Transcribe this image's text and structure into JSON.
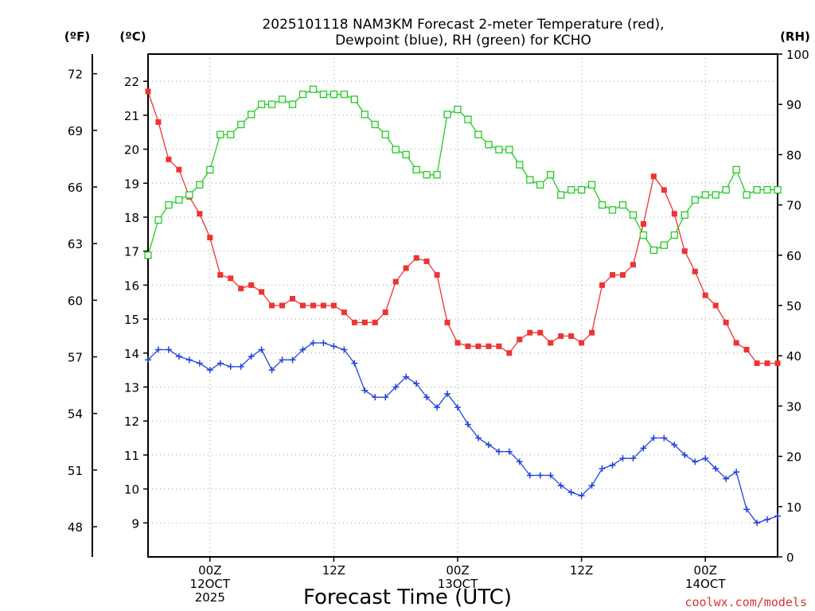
{
  "title_line1": "2025101118 NAM3KM Forecast 2-meter Temperature (red),",
  "title_line2": "Dewpoint (blue), RH (green) for KCHO",
  "unit_f": "(ºF)",
  "unit_c": "(ºC)",
  "unit_rh": "(RH)",
  "xlabel": "Forecast Time (UTC)",
  "credit": "coolwx.com/models",
  "colors": {
    "temperature": "#ee3333",
    "dewpoint": "#2244dd",
    "rh": "#22cc22",
    "credit": "#dd3333"
  },
  "chart_data": {
    "type": "line",
    "title": "2025101118 NAM3KM Forecast 2-meter Temperature (red), Dewpoint (blue), RH (green) for KCHO",
    "xlabel": "Forecast Time (UTC)",
    "x_unit": "forecast hour from 2025-10-11 18Z",
    "x": [
      0,
      1,
      2,
      3,
      4,
      5,
      6,
      7,
      8,
      9,
      10,
      11,
      12,
      13,
      14,
      15,
      16,
      17,
      18,
      19,
      20,
      21,
      22,
      23,
      24,
      25,
      26,
      27,
      28,
      29,
      30,
      31,
      32,
      33,
      34,
      35,
      36,
      37,
      38,
      39,
      40,
      41,
      42,
      43,
      44,
      45,
      46,
      47,
      48,
      49,
      50,
      51,
      52,
      53,
      54,
      55,
      56,
      57,
      58,
      59,
      60,
      61
    ],
    "xlim": [
      0,
      61
    ],
    "x_ticks": [
      {
        "hour": 6,
        "labels": [
          "00Z",
          "12OCT",
          "2025"
        ]
      },
      {
        "hour": 18,
        "labels": [
          "12Z"
        ]
      },
      {
        "hour": 30,
        "labels": [
          "00Z",
          "13OCT"
        ]
      },
      {
        "hour": 42,
        "labels": [
          "12Z"
        ]
      },
      {
        "hour": 54,
        "labels": [
          "00Z",
          "14OCT"
        ]
      }
    ],
    "y_left_c": {
      "label": "(ºC)",
      "lim": [
        8.0,
        22.8
      ],
      "ticks": [
        9,
        10,
        11,
        12,
        13,
        14,
        15,
        16,
        17,
        18,
        19,
        20,
        21,
        22
      ]
    },
    "y_left_f": {
      "label": "(ºF)",
      "ticks": [
        48,
        51,
        54,
        57,
        60,
        63,
        66,
        69,
        72
      ]
    },
    "y_right_rh": {
      "label": "(RH)",
      "lim": [
        0,
        100
      ],
      "ticks": [
        0,
        10,
        20,
        30,
        40,
        50,
        60,
        70,
        80,
        90,
        100
      ]
    },
    "grid": true,
    "series": [
      {
        "name": "Temperature",
        "unit": "C",
        "marker": "filled-square",
        "values": [
          21.7,
          20.8,
          19.7,
          19.4,
          18.6,
          18.1,
          17.4,
          16.3,
          16.2,
          15.9,
          16.0,
          15.8,
          15.4,
          15.4,
          15.6,
          15.4,
          15.4,
          15.4,
          15.4,
          15.2,
          14.9,
          14.9,
          14.9,
          15.2,
          16.1,
          16.5,
          16.8,
          16.7,
          16.3,
          14.9,
          14.3,
          14.2,
          14.2,
          14.2,
          14.2,
          14.0,
          14.4,
          14.6,
          14.6,
          14.3,
          14.5,
          14.5,
          14.3,
          14.6,
          16.0,
          16.3,
          16.3,
          16.6,
          17.8,
          19.2,
          18.8,
          18.1,
          17.0,
          16.4,
          15.7,
          15.4,
          14.9,
          14.3,
          14.1,
          13.7,
          13.7,
          13.7
        ]
      },
      {
        "name": "Dewpoint",
        "unit": "C",
        "marker": "plus",
        "values": [
          13.8,
          14.1,
          14.1,
          13.9,
          13.8,
          13.7,
          13.5,
          13.7,
          13.6,
          13.6,
          13.9,
          14.1,
          13.5,
          13.8,
          13.8,
          14.1,
          14.3,
          14.3,
          14.2,
          14.1,
          13.7,
          12.9,
          12.7,
          12.7,
          13.0,
          13.3,
          13.1,
          12.7,
          12.4,
          12.8,
          12.4,
          11.9,
          11.5,
          11.3,
          11.1,
          11.1,
          10.8,
          10.4,
          10.4,
          10.4,
          10.1,
          9.9,
          9.8,
          10.1,
          10.6,
          10.7,
          10.9,
          10.9,
          11.2,
          11.5,
          11.5,
          11.3,
          11.0,
          10.8,
          10.9,
          10.6,
          10.3,
          10.5,
          9.4,
          9.0,
          9.1,
          9.2
        ]
      },
      {
        "name": "RH",
        "unit": "%",
        "marker": "open-square",
        "values": [
          60,
          67,
          70,
          71,
          72,
          74,
          77,
          84,
          84,
          86,
          88,
          90,
          90,
          91,
          90,
          92,
          93,
          92,
          92,
          92,
          91,
          88,
          86,
          84,
          81,
          80,
          77,
          76,
          76,
          88,
          89,
          87,
          84,
          82,
          81,
          81,
          78,
          75,
          74,
          76,
          72,
          73,
          73,
          74,
          70,
          69,
          70,
          68,
          64,
          61,
          62,
          64,
          68,
          71,
          72,
          72,
          73,
          77,
          72,
          73,
          73,
          73
        ]
      }
    ]
  }
}
